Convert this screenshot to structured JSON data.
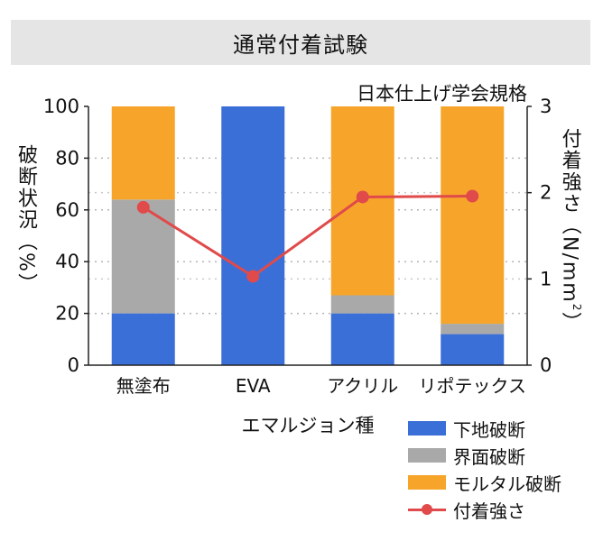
{
  "header": {
    "title": "通常付着試験"
  },
  "chart_data": {
    "type": "bar",
    "stacked": true,
    "title": "通常付着試験",
    "subtitle": "日本仕上げ学会規格",
    "xlabel": "エマルジョン種",
    "ylabel_left": "破断状況（%）",
    "ylabel_right_prefix": "付着強さ（N/mm",
    "ylabel_right_sup": "2",
    "ylabel_right_suffix": "）",
    "categories": [
      "無塗布",
      "EVA",
      "アクリル",
      "リポテックス"
    ],
    "ylim": [
      0,
      100
    ],
    "y2lim": [
      0,
      3
    ],
    "yticks": [
      "0",
      "20",
      "40",
      "60",
      "80",
      "100"
    ],
    "y2ticks": [
      "0",
      "1",
      "2",
      "3"
    ],
    "grid": true,
    "series": [
      {
        "name": "下地破断",
        "color": "#3b6fd8",
        "values": [
          20,
          100,
          20,
          12
        ]
      },
      {
        "name": "界面破断",
        "color": "#a9a9a9",
        "values": [
          44,
          0,
          7,
          4
        ]
      },
      {
        "name": "モルタル破断",
        "color": "#f7a52a",
        "values": [
          36,
          0,
          73,
          84
        ]
      }
    ],
    "line_series": {
      "name": "付着強さ",
      "color": "#e04a4a",
      "axis": "right",
      "values": [
        1.83,
        1.03,
        1.95,
        1.96
      ]
    },
    "legend": "bottom-right"
  }
}
